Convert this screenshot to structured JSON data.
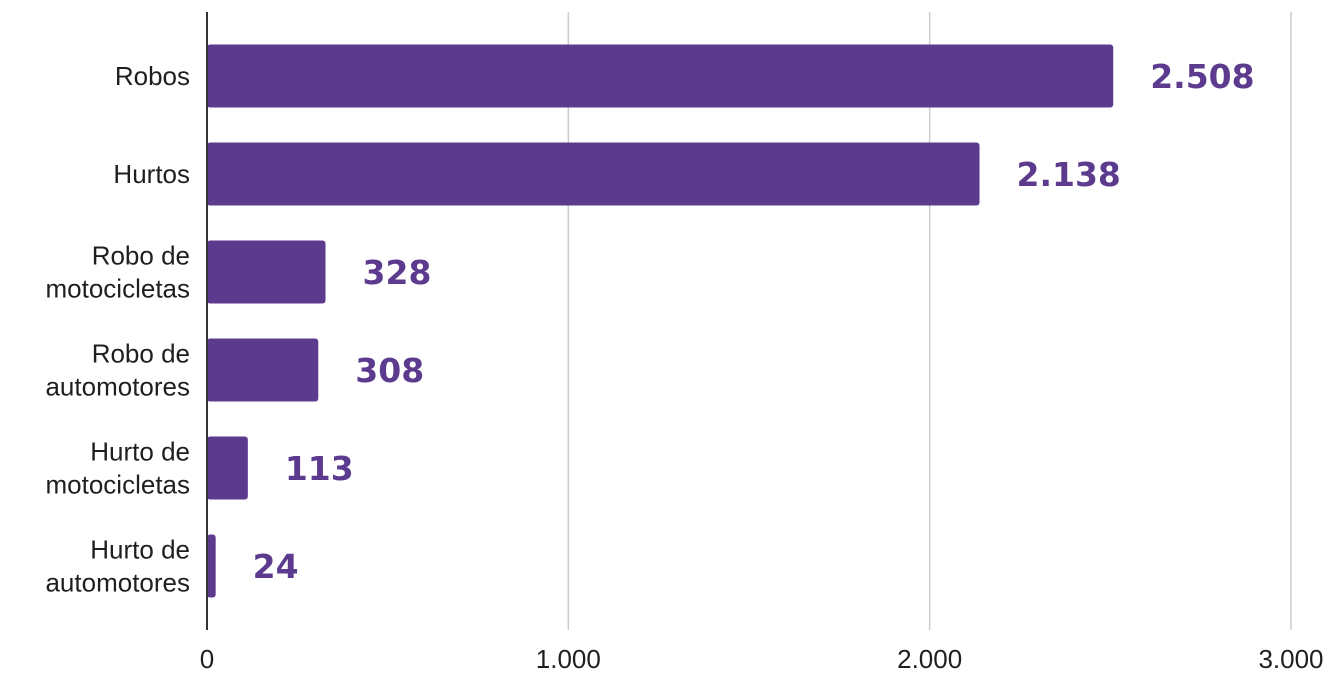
{
  "chart_data": {
    "type": "bar",
    "orientation": "horizontal",
    "categories": [
      [
        "Robos"
      ],
      [
        "Hurtos"
      ],
      [
        "Robo de",
        "motocicletas"
      ],
      [
        "Robo de",
        "automotores"
      ],
      [
        "Hurto de",
        "motocicletas"
      ],
      [
        "Hurto de",
        "automotores"
      ]
    ],
    "values": [
      2508,
      2138,
      328,
      308,
      113,
      24
    ],
    "value_labels": [
      "2.508",
      "2.138",
      "328",
      "308",
      "113",
      "24"
    ],
    "xlim": [
      0,
      3000
    ],
    "xticks": [
      0,
      1000,
      2000,
      3000
    ],
    "xtick_labels": [
      "0",
      "1.000",
      "2.000",
      "3.000"
    ],
    "grid": "vertical",
    "legend": "none",
    "bar_color": "#5c3b8e",
    "label_color": "#5c3b8e",
    "grid_color": "#cccccc",
    "axis_color": "#333333"
  }
}
